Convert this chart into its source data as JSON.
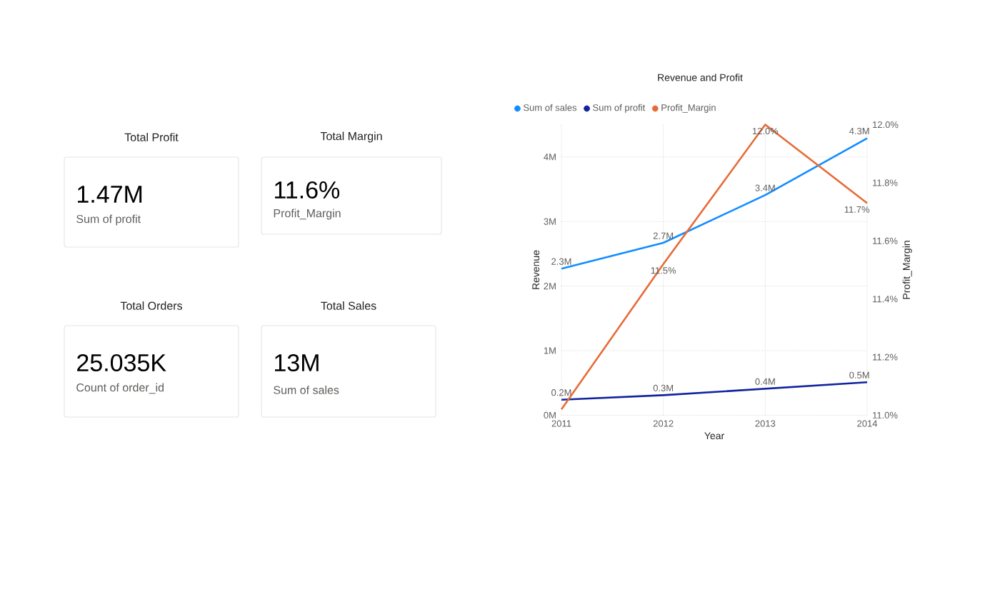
{
  "chart_data": [
    {
      "type": "other",
      "title": "Total Profit",
      "annotations": [
        "1.47M",
        "Sum of profit"
      ]
    },
    {
      "type": "other",
      "title": "Total Margin",
      "annotations": [
        "11.6%",
        "Profit_Margin"
      ]
    },
    {
      "type": "other",
      "title": "Total Orders",
      "annotations": [
        "25.035K",
        "Count of order_id"
      ]
    },
    {
      "type": "other",
      "title": "Total Sales",
      "annotations": [
        "13M",
        "Sum of sales"
      ]
    },
    {
      "type": "line",
      "title": "Revenue and Profit",
      "xlabel": "Year",
      "ylabel": "Revenue",
      "y2label": "Profit_Margin",
      "categories": [
        "2011",
        "2012",
        "2013",
        "2014"
      ],
      "series": [
        {
          "name": "Sum of sales",
          "color": "#118dff",
          "values": [
            2.27,
            2.67,
            3.41,
            4.29
          ],
          "value_labels": [
            "2.3M",
            "2.7M",
            "3.4M",
            "4.3M"
          ]
        },
        {
          "name": "Sum of profit",
          "color": "#12239e",
          "values": [
            0.24,
            0.31,
            0.41,
            0.51
          ],
          "value_labels": [
            "0.2M",
            "0.3M",
            "0.4M",
            "0.5M"
          ]
        },
        {
          "name": "Profit_Margin",
          "color": "#e66c37",
          "axis": "y2",
          "values": [
            11.02,
            11.52,
            12.0,
            11.73
          ],
          "value_labels": [
            null,
            "11.5%",
            "12.0%",
            "11.7%"
          ]
        }
      ],
      "ylim": [
        0,
        4.5
      ],
      "yticks": [
        {
          "value": 0,
          "label": "0M"
        },
        {
          "value": 1,
          "label": "1M"
        },
        {
          "value": 2,
          "label": "2M"
        },
        {
          "value": 3,
          "label": "3M"
        },
        {
          "value": 4,
          "label": "4M"
        }
      ],
      "y2lim": [
        11.0,
        12.0
      ],
      "y2ticks": [
        {
          "value": 11.0,
          "label": "11.0%"
        },
        {
          "value": 11.2,
          "label": "11.2%"
        },
        {
          "value": 11.4,
          "label": "11.4%"
        },
        {
          "value": 11.6,
          "label": "11.6%"
        },
        {
          "value": 11.8,
          "label": "11.8%"
        },
        {
          "value": 12.0,
          "label": "12.0%"
        }
      ],
      "grid": true,
      "legend": "top left"
    }
  ]
}
